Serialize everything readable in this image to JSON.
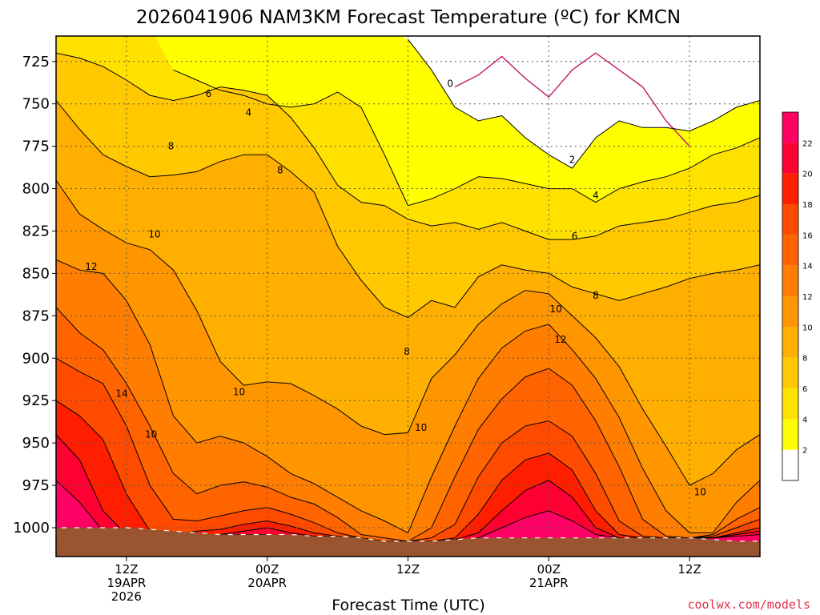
{
  "chart_data": {
    "type": "heatmap",
    "title": "2026041906 NAM3KM Forecast Temperature (ºC) for KMCN",
    "xlabel": "Forecast Time (UTC)",
    "ylabel": "",
    "y_axis": {
      "ticks": [
        725,
        750,
        775,
        800,
        825,
        850,
        875,
        900,
        925,
        950,
        975,
        1000
      ],
      "ylim": [
        1017,
        710
      ],
      "unit": "hPa"
    },
    "x_axis": {
      "start_hour": 6,
      "end_hour": 66,
      "ticks": [
        {
          "hour": 12,
          "lines": [
            "12Z",
            "19APR",
            "2026"
          ]
        },
        {
          "hour": 24,
          "lines": [
            "00Z",
            "20APR"
          ]
        },
        {
          "hour": 36,
          "lines": [
            "12Z"
          ]
        },
        {
          "hour": 48,
          "lines": [
            "00Z",
            "21APR"
          ]
        },
        {
          "hour": 60,
          "lines": [
            "12Z"
          ]
        }
      ]
    },
    "grid": true,
    "colorbar": {
      "levels": [
        2,
        4,
        6,
        8,
        10,
        12,
        14,
        16,
        18,
        20,
        22
      ],
      "colors": [
        "#ffffff",
        "#ffff00",
        "#ffe100",
        "#ffc800",
        "#ffaf00",
        "#ff9600",
        "#ff7d00",
        "#ff6400",
        "#ff4b00",
        "#ff1e00",
        "#ff0032",
        "#ff0064"
      ]
    },
    "contour_labels": [
      {
        "value": "0",
        "hour": 39.6,
        "p": 738
      },
      {
        "value": "2",
        "hour": 50.0,
        "p": 783
      },
      {
        "value": "4",
        "hour": 22.4,
        "p": 755
      },
      {
        "value": "4",
        "hour": 52.0,
        "p": 804
      },
      {
        "value": "6",
        "hour": 19.0,
        "p": 744
      },
      {
        "value": "6",
        "hour": 50.2,
        "p": 828
      },
      {
        "value": "8",
        "hour": 15.8,
        "p": 775
      },
      {
        "value": "8",
        "hour": 25.1,
        "p": 789
      },
      {
        "value": "8",
        "hour": 35.9,
        "p": 896
      },
      {
        "value": "8",
        "hour": 52.0,
        "p": 863
      },
      {
        "value": "10",
        "hour": 14.4,
        "p": 827
      },
      {
        "value": "10",
        "hour": 21.6,
        "p": 920
      },
      {
        "value": "10",
        "hour": 14.1,
        "p": 945
      },
      {
        "value": "10",
        "hour": 37.1,
        "p": 941
      },
      {
        "value": "10",
        "hour": 48.6,
        "p": 871
      },
      {
        "value": "10",
        "hour": 60.9,
        "p": 979
      },
      {
        "value": "12",
        "hour": 9.0,
        "p": 846
      },
      {
        "value": "12",
        "hour": 49.0,
        "p": 889
      },
      {
        "value": "14",
        "hour": 11.6,
        "p": 921
      }
    ],
    "series": [
      {
        "name": "",
        "hours": [
          6,
          8,
          10,
          12,
          14,
          16,
          18,
          20,
          22,
          24,
          26,
          28,
          30,
          32,
          34,
          36,
          38,
          40,
          42,
          44,
          46,
          48,
          50,
          52,
          54,
          56,
          58,
          60,
          62,
          64,
          66
        ],
        "values": []
      }
    ],
    "isotherms_hPa": {
      "hours": [
        6,
        8,
        10,
        12,
        14,
        16,
        18,
        20,
        22,
        24,
        26,
        28,
        30,
        32,
        34,
        36,
        38,
        40,
        42,
        44,
        46,
        48,
        50,
        52,
        54,
        56,
        58,
        60,
        62,
        64,
        66
      ],
      "t0": [
        null,
        null,
        null,
        null,
        null,
        null,
        null,
        null,
        null,
        null,
        null,
        null,
        null,
        null,
        null,
        null,
        null,
        740,
        733,
        722,
        735,
        746,
        730,
        720,
        730,
        740,
        760,
        775,
        null,
        null,
        null
      ],
      "t2": [
        null,
        null,
        null,
        null,
        null,
        null,
        null,
        null,
        null,
        null,
        null,
        null,
        null,
        null,
        null,
        712,
        730,
        752,
        760,
        757,
        770,
        780,
        788,
        770,
        760,
        764,
        764,
        766,
        760,
        752,
        748
      ],
      "t4": [
        null,
        null,
        null,
        null,
        null,
        730,
        736,
        742,
        745,
        750,
        752,
        750,
        743,
        752,
        780,
        810,
        806,
        800,
        793,
        794,
        797,
        800,
        800,
        808,
        800,
        796,
        793,
        788,
        780,
        776,
        770
      ],
      "t6": [
        720,
        723,
        728,
        736,
        745,
        748,
        745,
        740,
        742,
        745,
        758,
        776,
        798,
        808,
        810,
        818,
        822,
        820,
        824,
        820,
        825,
        830,
        830,
        828,
        822,
        820,
        818,
        814,
        810,
        808,
        804
      ],
      "t8": [
        748,
        765,
        780,
        787,
        793,
        792,
        790,
        784,
        780,
        780,
        790,
        802,
        834,
        854,
        870,
        876,
        866,
        870,
        852,
        845,
        848,
        850,
        858,
        862,
        866,
        862,
        858,
        853,
        850,
        848,
        845
      ],
      "t10": [
        795,
        815,
        824,
        832,
        836,
        848,
        872,
        902,
        916,
        914,
        915,
        922,
        930,
        940,
        945,
        944,
        912,
        898,
        880,
        868,
        860,
        862,
        875,
        888,
        905,
        930,
        952,
        975,
        968,
        954,
        945
      ],
      "t12": [
        842,
        848,
        850,
        866,
        892,
        934,
        950,
        946,
        950,
        958,
        968,
        974,
        982,
        990,
        996,
        1003,
        970,
        940,
        912,
        894,
        884,
        880,
        895,
        912,
        935,
        965,
        990,
        1003,
        1003,
        985,
        972
      ],
      "t14": [
        870,
        885,
        895,
        915,
        940,
        968,
        980,
        975,
        973,
        976,
        982,
        986,
        994,
        1004,
        1006,
        1008,
        1000,
        970,
        942,
        924,
        911,
        906,
        916,
        937,
        964,
        995,
        1005,
        1006,
        1004,
        995,
        988
      ],
      "t16": [
        900,
        908,
        915,
        940,
        975,
        995,
        996,
        993,
        990,
        988,
        992,
        997,
        1003,
        1006,
        1008,
        1008,
        1006,
        998,
        970,
        950,
        940,
        937,
        946,
        968,
        996,
        1005,
        1006,
        1006,
        1005,
        1000,
        995
      ],
      "t18": [
        925,
        934,
        948,
        980,
        1002,
        1004,
        1002,
        1001,
        998,
        996,
        999,
        1003,
        1005,
        1006,
        1008,
        1008,
        1008,
        1006,
        992,
        972,
        960,
        956,
        966,
        990,
        1004,
        1006,
        1006,
        1006,
        1006,
        1003,
        1000
      ],
      "t20": [
        945,
        960,
        990,
        1004,
        1004,
        1004,
        1004,
        1004,
        1002,
        1000,
        1003,
        1005,
        1005,
        1006,
        1008,
        1008,
        1008,
        1007,
        1003,
        990,
        978,
        972,
        982,
        1000,
        1006,
        1006,
        1006,
        1006,
        1006,
        1004,
        1002
      ],
      "t22": [
        972,
        985,
        1002,
        1004,
        1004,
        1004,
        1004,
        1004,
        1004,
        1004,
        1005,
        1005,
        1005,
        1006,
        1008,
        1008,
        1008,
        1008,
        1006,
        1000,
        994,
        990,
        996,
        1004,
        1006,
        1006,
        1006,
        1006,
        1006,
        1005,
        1004
      ]
    },
    "ground_hPa": [
      1000,
      1000,
      1000,
      1000,
      1001,
      1002,
      1003,
      1004,
      1004,
      1004,
      1004,
      1005,
      1005,
      1006,
      1008,
      1008,
      1008,
      1007,
      1006,
      1006,
      1006,
      1006,
      1006,
      1006,
      1006,
      1006,
      1006,
      1006,
      1007,
      1008,
      1008
    ]
  },
  "credit": "coolwx.com/models",
  "credit_color": "#e0304a",
  "ground_color": "#9b5430",
  "plot_frame_color": "#000000"
}
